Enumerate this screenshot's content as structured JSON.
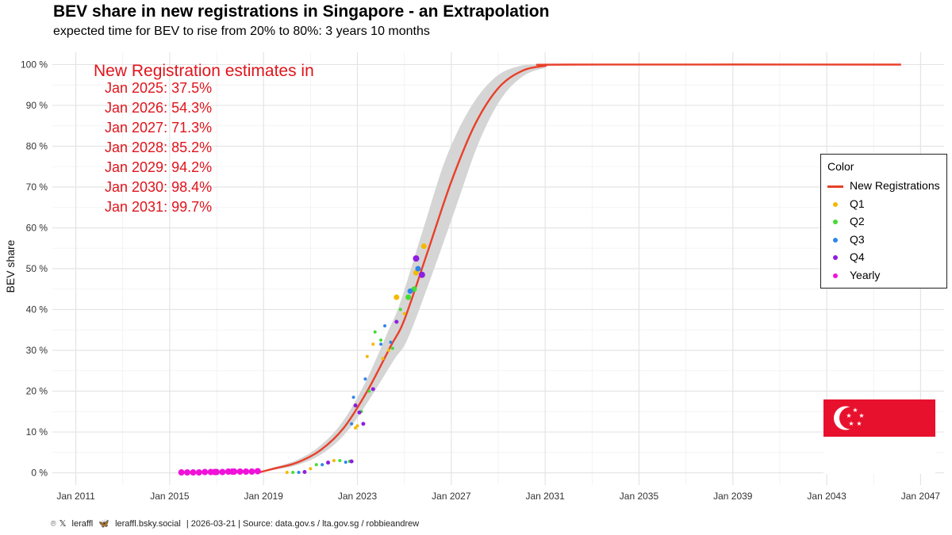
{
  "title": "BEV share in new registrations in Singapore - an Extrapolation",
  "subtitle": "expected time for BEV to rise from 20% to 80%: 3 years 10 months",
  "estimates": {
    "heading": "New Registration estimates in",
    "lines": [
      "Jan 2025: 37.5%",
      "Jan 2026: 54.3%",
      "Jan 2027: 71.3%",
      "Jan 2028: 85.2%",
      "Jan 2029: 94.2%",
      "Jan 2030: 98.4%",
      "Jan 2031: 99.7%"
    ]
  },
  "legend": {
    "title": "Color",
    "items": [
      {
        "label": "New Registrations",
        "kind": "line",
        "color": "#e8402a"
      },
      {
        "label": "Q1",
        "kind": "dot",
        "color": "#f5b800"
      },
      {
        "label": "Q2",
        "kind": "dot",
        "color": "#44dd33"
      },
      {
        "label": "Q3",
        "kind": "dot",
        "color": "#2f86e8"
      },
      {
        "label": "Q4",
        "kind": "dot",
        "color": "#8e1ee0"
      },
      {
        "label": "Yearly",
        "kind": "dot",
        "color": "#f012d8"
      }
    ]
  },
  "caption": {
    "handle_x": "leraffl",
    "handle_bsky": "leraffl.bsky.social",
    "rest": "| 2026-03-21 | Source: data.gov.s / lta.gov.sg / robbieandrew"
  },
  "chart_data": {
    "type": "scatter",
    "xlabel": "",
    "ylabel": "BEV share",
    "x_ticks": [
      "Jan 2011",
      "Jan 2015",
      "Jan 2019",
      "Jan 2023",
      "Jan 2027",
      "Jan 2031",
      "Jan 2035",
      "Jan 2039",
      "Jan 2043",
      "Jan 2047"
    ],
    "y_ticks": [
      "0 %",
      "10 %",
      "20 %",
      "30 %",
      "40 %",
      "50 %",
      "60 %",
      "70 %",
      "80 %",
      "90 %",
      "100 %"
    ],
    "xlim": [
      "2010-01",
      "2048-01"
    ],
    "ylim": [
      -3,
      103
    ],
    "grid": true,
    "legend_position": "right",
    "fit_curve": {
      "name": "New Registrations",
      "color": "#e8402a",
      "points": [
        {
          "x": "2018-10",
          "y": 0.0
        },
        {
          "x": "2019-06",
          "y": 1.0
        },
        {
          "x": "2020-06",
          "y": 2.5
        },
        {
          "x": "2021-06",
          "y": 5.5
        },
        {
          "x": "2022-06",
          "y": 11.0
        },
        {
          "x": "2023-06",
          "y": 20.0
        },
        {
          "x": "2024-06",
          "y": 31.0
        },
        {
          "x": "2025-01",
          "y": 37.5
        },
        {
          "x": "2026-01",
          "y": 54.3
        },
        {
          "x": "2027-01",
          "y": 71.3
        },
        {
          "x": "2028-01",
          "y": 85.2
        },
        {
          "x": "2029-01",
          "y": 94.2
        },
        {
          "x": "2030-01",
          "y": 98.4
        },
        {
          "x": "2031-01",
          "y": 99.7
        },
        {
          "x": "2032-01",
          "y": 100.0
        },
        {
          "x": "2046-03",
          "y": 100.0
        }
      ],
      "band_halfwidth": [
        0.0,
        0.3,
        0.6,
        1.0,
        1.5,
        2.2,
        3.5,
        4.5,
        5.5,
        6.0,
        4.5,
        2.8,
        1.3,
        0.5,
        0.1,
        0.0
      ]
    },
    "series": [
      {
        "name": "Yearly",
        "color": "#f012d8",
        "size": 8,
        "points": [
          {
            "x": "2015-07",
            "y": 0.1
          },
          {
            "x": "2015-10",
            "y": 0.1
          },
          {
            "x": "2016-01",
            "y": 0.1
          },
          {
            "x": "2016-04",
            "y": 0.1
          },
          {
            "x": "2016-07",
            "y": 0.2
          },
          {
            "x": "2016-10",
            "y": 0.2
          },
          {
            "x": "2017-01",
            "y": 0.2
          },
          {
            "x": "2017-04",
            "y": 0.2
          },
          {
            "x": "2017-07",
            "y": 0.3
          },
          {
            "x": "2017-10",
            "y": 0.3
          },
          {
            "x": "2018-01",
            "y": 0.3
          },
          {
            "x": "2018-04",
            "y": 0.3
          },
          {
            "x": "2018-07",
            "y": 0.3
          },
          {
            "x": "2018-10",
            "y": 0.4
          },
          {
            "x": "2016-12",
            "y": 0.2
          },
          {
            "x": "2017-09",
            "y": 0.3
          }
        ]
      },
      {
        "name": "Q1",
        "color": "#f5b800",
        "size": 4,
        "points": [
          {
            "x": "2020-01",
            "y": 0.1
          },
          {
            "x": "2021-01",
            "y": 1.0
          },
          {
            "x": "2022-01",
            "y": 3.0
          },
          {
            "x": "2022-12",
            "y": 11.0
          },
          {
            "x": "2023-01",
            "y": 11.5
          },
          {
            "x": "2023-06",
            "y": 28.5
          },
          {
            "x": "2023-09",
            "y": 31.5
          },
          {
            "x": "2024-02",
            "y": 28.0
          },
          {
            "x": "2024-05",
            "y": 30.0
          },
          {
            "x": "2024-09",
            "y": 43.0
          },
          {
            "x": "2025-01",
            "y": 39.0
          },
          {
            "x": "2025-07",
            "y": 49.0
          },
          {
            "x": "2025-11",
            "y": 55.5
          }
        ]
      },
      {
        "name": "Q2",
        "color": "#44dd33",
        "size": 4,
        "points": [
          {
            "x": "2020-04",
            "y": 0.1
          },
          {
            "x": "2021-04",
            "y": 2.0
          },
          {
            "x": "2022-04",
            "y": 3.0
          },
          {
            "x": "2022-09",
            "y": 2.8
          },
          {
            "x": "2023-03",
            "y": 15.0
          },
          {
            "x": "2023-07",
            "y": 20.0
          },
          {
            "x": "2023-10",
            "y": 34.5
          },
          {
            "x": "2024-01",
            "y": 32.5
          },
          {
            "x": "2024-07",
            "y": 30.5
          },
          {
            "x": "2024-11",
            "y": 40.0
          },
          {
            "x": "2025-03",
            "y": 43.0
          },
          {
            "x": "2025-06",
            "y": 45.0
          }
        ]
      },
      {
        "name": "Q3",
        "color": "#2f86e8",
        "size": 4,
        "points": [
          {
            "x": "2020-07",
            "y": 0.1
          },
          {
            "x": "2021-07",
            "y": 2.0
          },
          {
            "x": "2022-07",
            "y": 2.6
          },
          {
            "x": "2022-10",
            "y": 12.0
          },
          {
            "x": "2022-11",
            "y": 18.5
          },
          {
            "x": "2023-05",
            "y": 23.0
          },
          {
            "x": "2024-01",
            "y": 31.5
          },
          {
            "x": "2024-03",
            "y": 36.0
          },
          {
            "x": "2024-06",
            "y": 32.0
          },
          {
            "x": "2025-04",
            "y": 44.5
          },
          {
            "x": "2025-08",
            "y": 50.0
          }
        ]
      },
      {
        "name": "Q4",
        "color": "#8e1ee0",
        "size": 5,
        "points": [
          {
            "x": "2020-10",
            "y": 0.2
          },
          {
            "x": "2021-10",
            "y": 2.5
          },
          {
            "x": "2022-10",
            "y": 2.8
          },
          {
            "x": "2022-12",
            "y": 16.5
          },
          {
            "x": "2023-02",
            "y": 14.8
          },
          {
            "x": "2023-04",
            "y": 12.0
          },
          {
            "x": "2023-09",
            "y": 20.5
          },
          {
            "x": "2024-09",
            "y": 37.0
          },
          {
            "x": "2025-07",
            "y": 52.5
          },
          {
            "x": "2025-10",
            "y": 48.5
          }
        ]
      }
    ]
  }
}
